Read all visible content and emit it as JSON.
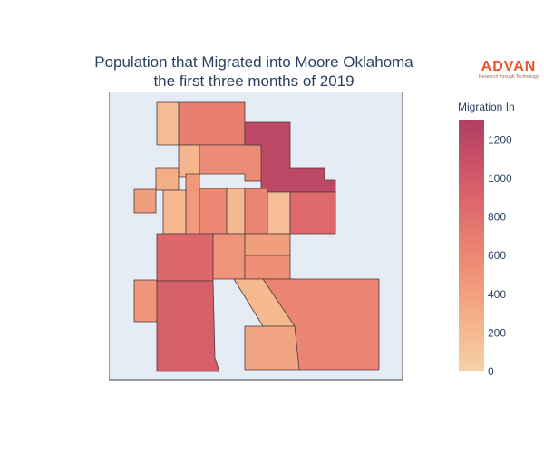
{
  "title": {
    "line1": "Population that Migrated into Moore Oklahoma",
    "line2": "the first three months of 2019"
  },
  "logo": {
    "word": "ADVAN",
    "tagline": "Research through Technology",
    "color": "#e8552a"
  },
  "colorbar": {
    "title": "Migration In",
    "range": [
      0,
      1300
    ],
    "ticks": [
      "0",
      "200",
      "400",
      "600",
      "800",
      "1000",
      "1200"
    ],
    "tick_values": [
      0,
      200,
      400,
      600,
      800,
      1000,
      1200
    ],
    "colorscale": [
      "#f6d2a9",
      "#f5b78e",
      "#f19c7c",
      "#ea8171",
      "#dd686c",
      "#ca5268",
      "#b13f64"
    ]
  },
  "chart_data": {
    "type": "choropleth",
    "title": "Population that Migrated into Moore Oklahoma the first three months of 2019",
    "legend_title": "Migration In",
    "color_range": [
      0,
      1300
    ],
    "regions": [
      {
        "id": "north-a",
        "value": 180
      },
      {
        "id": "north-b",
        "value": 680
      },
      {
        "id": "north-c",
        "value": 230
      },
      {
        "id": "north-d",
        "value": 560
      },
      {
        "id": "northeast",
        "value": 1200
      },
      {
        "id": "west-edge",
        "value": 420
      },
      {
        "id": "center-a",
        "value": 300
      },
      {
        "id": "center-b",
        "value": 450
      },
      {
        "id": "center-c",
        "value": 600
      },
      {
        "id": "center-d",
        "value": 200
      },
      {
        "id": "center-e",
        "value": 620
      },
      {
        "id": "center-f",
        "value": 160
      },
      {
        "id": "center-g",
        "value": 210
      },
      {
        "id": "east-mid",
        "value": 850
      },
      {
        "id": "sw-upper",
        "value": 870
      },
      {
        "id": "mid-strip",
        "value": 500
      },
      {
        "id": "mid-south",
        "value": 420
      },
      {
        "id": "se-small",
        "value": 530
      },
      {
        "id": "southwest",
        "value": 480
      },
      {
        "id": "south-west-large",
        "value": 950
      },
      {
        "id": "south-wedge",
        "value": 200
      },
      {
        "id": "south-center",
        "value": 360
      },
      {
        "id": "southeast",
        "value": 620
      }
    ]
  }
}
